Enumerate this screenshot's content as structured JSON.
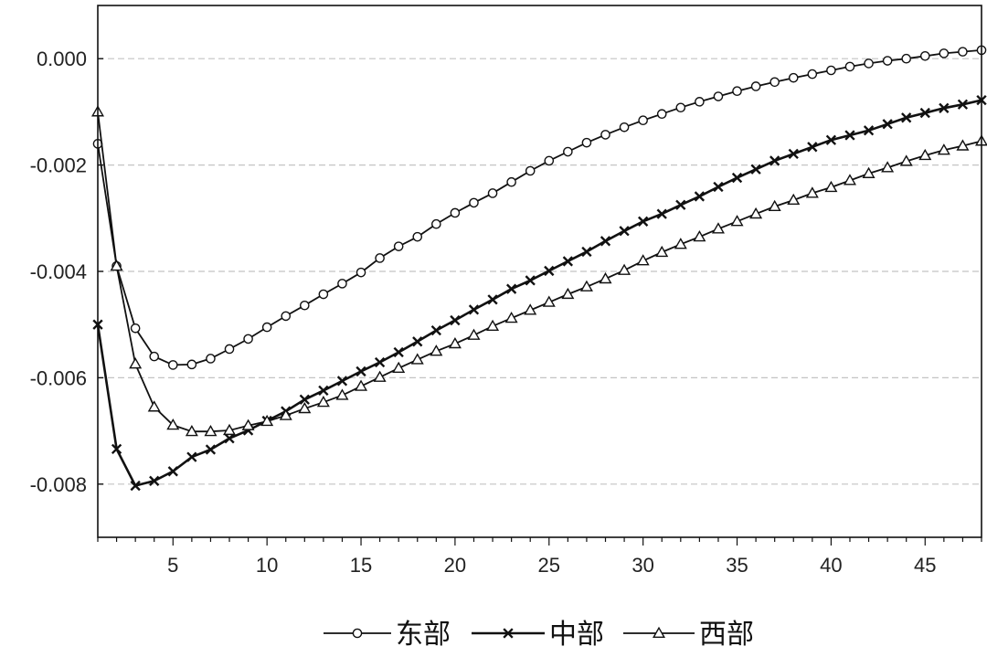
{
  "chart_data": {
    "type": "line",
    "title": "",
    "xlabel": "",
    "ylabel": "",
    "xlim": [
      1,
      48
    ],
    "ylim": [
      -0.009,
      0.001
    ],
    "x_ticks": [
      5,
      10,
      15,
      20,
      25,
      30,
      35,
      40,
      45
    ],
    "y_ticks": [
      0.0,
      -0.002,
      -0.004,
      -0.006,
      -0.008
    ],
    "y_tick_labels": [
      "0.000",
      "-0.002",
      "-0.004",
      "-0.006",
      "-0.008"
    ],
    "grid": "horizontal dashed",
    "legend_position": "bottom-center",
    "x": [
      1,
      2,
      3,
      4,
      5,
      6,
      7,
      8,
      9,
      10,
      11,
      12,
      13,
      14,
      15,
      16,
      17,
      18,
      19,
      20,
      21,
      22,
      23,
      24,
      25,
      26,
      27,
      28,
      29,
      30,
      31,
      32,
      33,
      34,
      35,
      36,
      37,
      38,
      39,
      40,
      41,
      42,
      43,
      44,
      45,
      46,
      47,
      48
    ],
    "series": [
      {
        "name": "东部",
        "marker": "circle",
        "color": "#111111",
        "values": [
          -0.0016,
          -0.0039,
          -0.00507,
          -0.0056,
          -0.00576,
          -0.00575,
          -0.00564,
          -0.00546,
          -0.00527,
          -0.00505,
          -0.00484,
          -0.00464,
          -0.00443,
          -0.00423,
          -0.00402,
          -0.00375,
          -0.00353,
          -0.00335,
          -0.00311,
          -0.0029,
          -0.00271,
          -0.00253,
          -0.00232,
          -0.00211,
          -0.00192,
          -0.00175,
          -0.00158,
          -0.00143,
          -0.00129,
          -0.00116,
          -0.00104,
          -0.00092,
          -0.00081,
          -0.00071,
          -0.00061,
          -0.00052,
          -0.00044,
          -0.00036,
          -0.00029,
          -0.00022,
          -0.00015,
          -9e-05,
          -4e-05,
          0.0,
          5e-05,
          0.0001,
          0.00013,
          0.00016
        ]
      },
      {
        "name": "中部",
        "marker": "cross",
        "color": "#111111",
        "values": [
          -0.005,
          -0.00734,
          -0.00803,
          -0.00794,
          -0.00776,
          -0.00749,
          -0.00735,
          -0.00714,
          -0.00699,
          -0.00681,
          -0.00663,
          -0.00641,
          -0.00624,
          -0.00606,
          -0.00588,
          -0.00571,
          -0.00552,
          -0.00532,
          -0.00511,
          -0.00492,
          -0.00472,
          -0.00453,
          -0.00433,
          -0.00417,
          -0.00399,
          -0.00381,
          -0.00363,
          -0.00343,
          -0.00324,
          -0.00306,
          -0.00292,
          -0.00275,
          -0.00259,
          -0.00241,
          -0.00224,
          -0.00208,
          -0.00192,
          -0.00179,
          -0.00166,
          -0.00153,
          -0.00144,
          -0.00135,
          -0.00123,
          -0.00111,
          -0.00102,
          -0.00093,
          -0.00086,
          -0.00078
        ]
      },
      {
        "name": "西部",
        "marker": "triangle",
        "color": "#111111",
        "values": [
          -0.001,
          -0.0039,
          -0.00574,
          -0.00655,
          -0.00689,
          -0.00701,
          -0.00701,
          -0.00699,
          -0.0069,
          -0.00682,
          -0.00671,
          -0.00658,
          -0.00646,
          -0.00633,
          -0.00616,
          -0.00599,
          -0.00582,
          -0.00566,
          -0.0055,
          -0.00536,
          -0.0052,
          -0.00503,
          -0.00488,
          -0.00473,
          -0.00458,
          -0.00443,
          -0.00429,
          -0.00414,
          -0.00398,
          -0.0038,
          -0.00364,
          -0.00349,
          -0.00335,
          -0.0032,
          -0.00306,
          -0.00292,
          -0.00278,
          -0.00266,
          -0.00253,
          -0.00242,
          -0.00229,
          -0.00216,
          -0.00205,
          -0.00193,
          -0.00182,
          -0.00172,
          -0.00164,
          -0.00155
        ]
      }
    ]
  }
}
